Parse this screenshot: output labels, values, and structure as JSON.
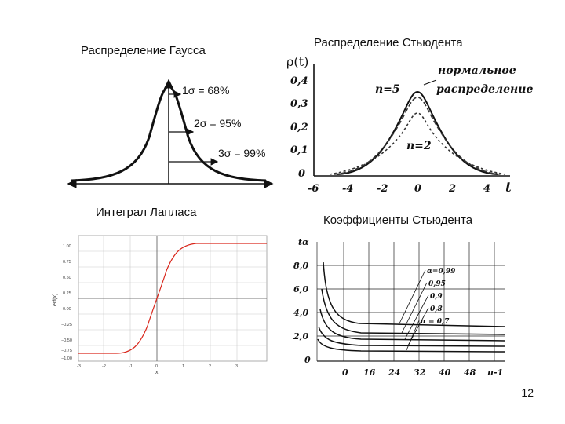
{
  "slide": {
    "page_number": "12"
  },
  "gauss": {
    "title": "Распределение Гаусса",
    "sigma_labels": [
      "1σ = 68%",
      "2σ = 95%",
      "3σ = 99%"
    ]
  },
  "student": {
    "title": "Распределение Стьюдента",
    "ylabel": "ρ(t)",
    "xlabel": "t",
    "y_ticks": [
      "0,4",
      "0,3",
      "0,2",
      "0,1",
      "0"
    ],
    "x_ticks": [
      "-6",
      "-4",
      "-2",
      "0",
      "2",
      "4"
    ],
    "legend_normal_line1": "нормальное",
    "legend_normal_line2": "распределение",
    "label_n5": "n=5",
    "label_n2": "n=2"
  },
  "laplace": {
    "title": "Интеграл Лапласа",
    "ylabel": "erf(x)",
    "xlabel": "x",
    "y_ticks": [
      "1.00",
      "0.75",
      "0.50",
      "0.25",
      "0.00",
      "−0.25",
      "−0.50",
      "−0.75",
      "−1.00"
    ],
    "x_ticks": [
      "-3",
      "-2",
      "-1",
      "0",
      "1",
      "2",
      "3"
    ]
  },
  "student_coef": {
    "title": "Коэффициенты Стьюдента",
    "ylabel": "tα",
    "y_ticks": [
      "8,0",
      "6,0",
      "4,0",
      "2,0",
      "0"
    ],
    "x_ticks": [
      "0",
      "16",
      "24",
      "32",
      "40",
      "48",
      "n-1"
    ],
    "curve_labels": [
      "α=0,99",
      "0,95",
      "0,9",
      "0,8",
      "α = 0,7"
    ]
  }
}
